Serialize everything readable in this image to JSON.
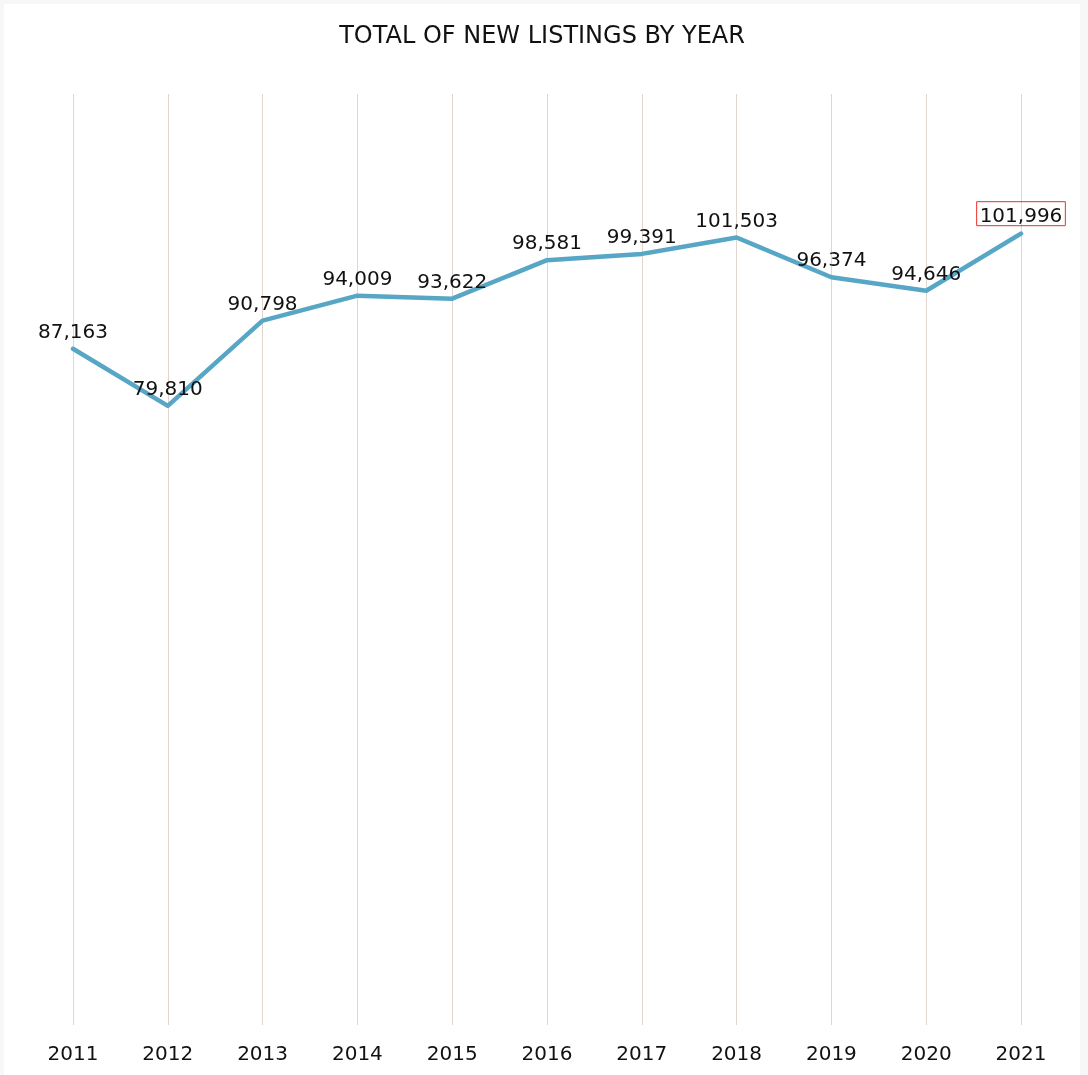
{
  "chart_data": {
    "type": "line",
    "title": "TOTAL OF NEW LISTINGS BY YEAR",
    "categories": [
      "2011",
      "2012",
      "2013",
      "2014",
      "2015",
      "2016",
      "2017",
      "2018",
      "2019",
      "2020",
      "2021"
    ],
    "series": [
      {
        "color": "#57a6c6",
        "values": [
          87163,
          79810,
          90798,
          94009,
          93622,
          98581,
          99391,
          101503,
          96374,
          94646,
          101996
        ],
        "value_labels": [
          "87,163",
          "79,810",
          "90,798",
          "94,009",
          "93,622",
          "98,581",
          "99,391",
          "101,503",
          "96,374",
          "94,646",
          "101,996"
        ]
      }
    ],
    "grid": "x",
    "line_style": "solid"
  }
}
